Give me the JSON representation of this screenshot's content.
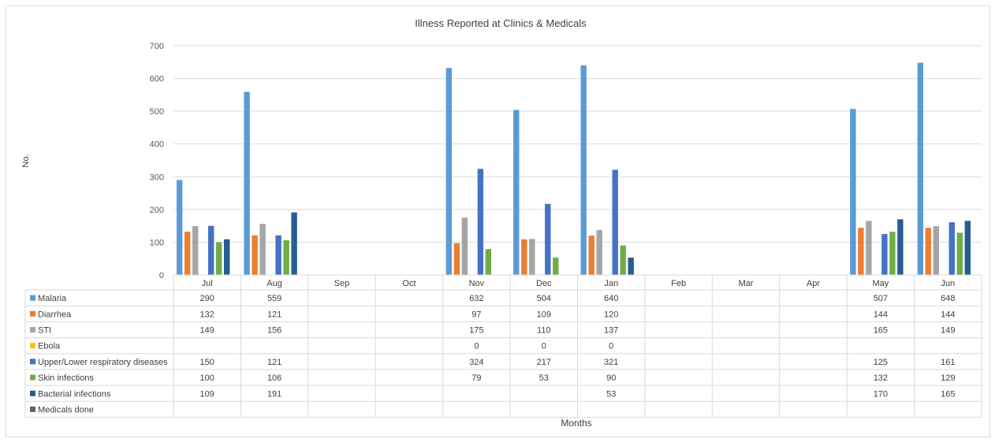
{
  "chart_data": {
    "type": "bar",
    "title": "Illness Reported at Clinics & Medicals",
    "xlabel": "Months",
    "ylabel": "No.",
    "ylim": [
      0,
      700
    ],
    "yticks": [
      0,
      100,
      200,
      300,
      400,
      500,
      600,
      700
    ],
    "grid": true,
    "legend": "data-table",
    "categories": [
      "Jul",
      "Aug",
      "Sep",
      "Oct",
      "Nov",
      "Dec",
      "Jan",
      "Feb",
      "Mar",
      "Apr",
      "May",
      "Jun"
    ],
    "series": [
      {
        "name": "Malaria",
        "color": "#5b9bd5",
        "values": [
          290,
          559,
          null,
          null,
          632,
          504,
          640,
          null,
          null,
          null,
          507,
          648
        ]
      },
      {
        "name": "Diarrhea",
        "color": "#ed7d31",
        "values": [
          132,
          121,
          null,
          null,
          97,
          109,
          120,
          null,
          null,
          null,
          144,
          144
        ]
      },
      {
        "name": "STI",
        "color": "#a5a5a5",
        "values": [
          149,
          156,
          null,
          null,
          175,
          110,
          137,
          null,
          null,
          null,
          165,
          149
        ]
      },
      {
        "name": "Ebola",
        "color": "#ffc000",
        "values": [
          null,
          null,
          null,
          null,
          0,
          0,
          0,
          null,
          null,
          null,
          null,
          null
        ]
      },
      {
        "name": "Upper/Lower respiratory diseases",
        "color": "#4472c4",
        "values": [
          150,
          121,
          null,
          null,
          324,
          217,
          321,
          null,
          null,
          null,
          125,
          161
        ]
      },
      {
        "name": "Skin infections",
        "color": "#70ad47",
        "values": [
          100,
          106,
          null,
          null,
          79,
          53,
          90,
          null,
          null,
          null,
          132,
          129
        ]
      },
      {
        "name": "Bacterial infections",
        "color": "#255e91",
        "values": [
          109,
          191,
          null,
          null,
          null,
          null,
          53,
          null,
          null,
          null,
          170,
          165
        ]
      },
      {
        "name": "Medicals done",
        "color": "#636363",
        "values": [
          null,
          null,
          null,
          null,
          null,
          null,
          null,
          null,
          null,
          null,
          null,
          null
        ]
      }
    ]
  }
}
